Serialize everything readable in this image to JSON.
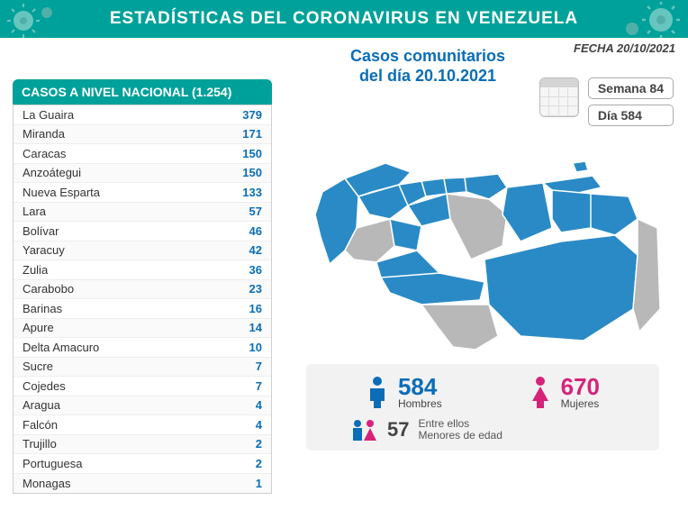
{
  "banner_title": "ESTADÍSTICAS DEL CORONAVIRUS EN VENEZUELA",
  "fecha_label": "FECHA 20/10/2021",
  "subtitle_line1": "Casos comunitarios",
  "subtitle_line2": "del día 20.10.2021",
  "table_header": "CASOS A NIVEL NACIONAL (1.254)",
  "semana_label": "Semana 84",
  "dia_label": "Día 584",
  "states": [
    {
      "name": "La Guaira",
      "value": "379"
    },
    {
      "name": "Miranda",
      "value": "171"
    },
    {
      "name": "Caracas",
      "value": "150"
    },
    {
      "name": "Anzoátegui",
      "value": "150"
    },
    {
      "name": "Nueva Esparta",
      "value": "133"
    },
    {
      "name": "Lara",
      "value": "57"
    },
    {
      "name": "Bolívar",
      "value": "46"
    },
    {
      "name": "Yaracuy",
      "value": "42"
    },
    {
      "name": "Zulia",
      "value": "36"
    },
    {
      "name": "Carabobo",
      "value": "23"
    },
    {
      "name": "Barinas",
      "value": "16"
    },
    {
      "name": "Apure",
      "value": "14"
    },
    {
      "name": "Delta Amacuro",
      "value": "10"
    },
    {
      "name": "Sucre",
      "value": "7"
    },
    {
      "name": "Cojedes",
      "value": "7"
    },
    {
      "name": "Aragua",
      "value": "4"
    },
    {
      "name": "Falcón",
      "value": "4"
    },
    {
      "name": "Trujillo",
      "value": "2"
    },
    {
      "name": "Portuguesa",
      "value": "2"
    },
    {
      "name": "Monagas",
      "value": "1"
    }
  ],
  "gender": {
    "hombres_value": "584",
    "hombres_label": "Hombres",
    "hombres_color": "#0b6db7",
    "mujeres_value": "670",
    "mujeres_label": "Mujeres",
    "mujeres_color": "#d6237a",
    "minors_value": "57",
    "minors_line1": "Entre ellos",
    "minors_line2": "Menores de edad"
  },
  "colors": {
    "teal": "#00a19a",
    "blue": "#0b6db7",
    "map_active": "#2a8ac6",
    "map_inactive": "#b8b8b8",
    "map_stroke": "#ffffff",
    "bg_box": "#f2f2f2"
  }
}
